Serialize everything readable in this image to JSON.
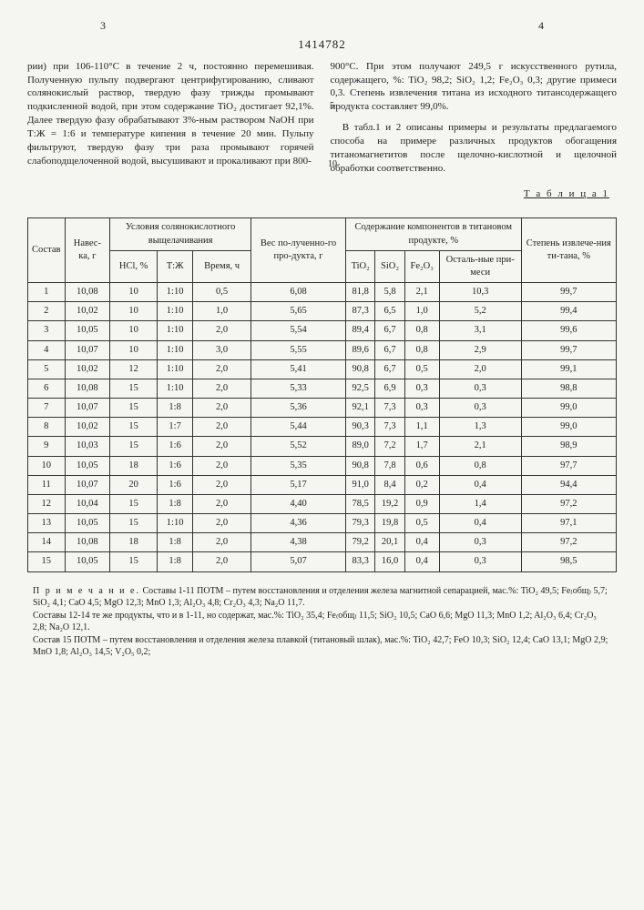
{
  "pageLeft": "3",
  "pageRight": "4",
  "docNumber": "1414782",
  "lineMarker5": "5",
  "lineMarker10": "10",
  "colLeft": "рии) при 106-110°С в течение 2 ч, постоянно перемешивая. Полученную пульпу подвергают центрифугированию, сливают солянокислый раствор, твердую фазу трижды промывают подкисленной водой, при этом содержание TiO₂ достигает 92,1%. Далее твердую фазу обрабатывают 3%-ным раствором NaOH при Т:Ж = 1:6 и температуре кипения в течение 20 мин. Пульпу фильтруют, твердую фазу три раза промывают горячей слабоподщелоченной водой, высушивают и прокаливают при 800-",
  "colRightP1": "900°С. При этом получают 249,5 г искусственного рутила, содержащего, %: TiO₂ 98,2; SiO₂ 1,2; Fe₂O₃ 0,3; другие примеси 0,3. Степень извлечения титана из исходного титансодержащего продукта составляет 99,0%.",
  "colRightP2": "В табл.1 и 2 описаны примеры и результаты предлагаемого способа на примере различных продуктов обогащения титаномагнетитов после щелочно-кислотной и щелочной обработки соответственно.",
  "tableTitle": "Т а б л и ц а  1",
  "headers": {
    "sostav": "Состав",
    "naveska": "Навес-ка, г",
    "usloviya": "Условия солянокислотного выщелачивания",
    "hcl": "HCl, %",
    "tzh": "Т:Ж",
    "vremya": "Время, ч",
    "ves": "Вес по-лученно-го про-дукта, г",
    "soderzh": "Содержание компонентов в титановом продукте, %",
    "tio2": "TiO₂",
    "sio2": "SiO₂",
    "fe2o3": "Fe₂O₃",
    "ostal": "Осталь-ные при-меси",
    "stepen": "Степень извлече-ния ти-тана, %"
  },
  "rows": [
    [
      "1",
      "10,08",
      "10",
      "1:10",
      "0,5",
      "6,08",
      "81,8",
      "5,8",
      "2,1",
      "10,3",
      "99,7"
    ],
    [
      "2",
      "10,02",
      "10",
      "1:10",
      "1,0",
      "5,65",
      "87,3",
      "6,5",
      "1,0",
      "5,2",
      "99,4"
    ],
    [
      "3",
      "10,05",
      "10",
      "1:10",
      "2,0",
      "5,54",
      "89,4",
      "6,7",
      "0,8",
      "3,1",
      "99,6"
    ],
    [
      "4",
      "10,07",
      "10",
      "1:10",
      "3,0",
      "5,55",
      "89,6",
      "6,7",
      "0,8",
      "2,9",
      "99,7"
    ],
    [
      "5",
      "10,02",
      "12",
      "1:10",
      "2,0",
      "5,41",
      "90,8",
      "6,7",
      "0,5",
      "2,0",
      "99,1"
    ],
    [
      "6",
      "10,08",
      "15",
      "1:10",
      "2,0",
      "5,33",
      "92,5",
      "6,9",
      "0,3",
      "0,3",
      "98,8"
    ],
    [
      "7",
      "10,07",
      "15",
      "1:8",
      "2,0",
      "5,36",
      "92,1",
      "7,3",
      "0,3",
      "0,3",
      "99,0"
    ],
    [
      "8",
      "10,02",
      "15",
      "1:7",
      "2,0",
      "5,44",
      "90,3",
      "7,3",
      "1,1",
      "1,3",
      "99,0"
    ],
    [
      "9",
      "10,03",
      "15",
      "1:6",
      "2,0",
      "5,52",
      "89,0",
      "7,2",
      "1,7",
      "2,1",
      "98,9"
    ],
    [
      "10",
      "10,05",
      "18",
      "1:6",
      "2,0",
      "5,35",
      "90,8",
      "7,8",
      "0,6",
      "0,8",
      "97,7"
    ],
    [
      "11",
      "10,07",
      "20",
      "1:6",
      "2,0",
      "5,17",
      "91,0",
      "8,4",
      "0,2",
      "0,4",
      "94,4"
    ],
    [
      "12",
      "10,04",
      "15",
      "1:8",
      "2,0",
      "4,40",
      "78,5",
      "19,2",
      "0,9",
      "1,4",
      "97,2"
    ],
    [
      "13",
      "10,05",
      "15",
      "1:10",
      "2,0",
      "4,36",
      "79,3",
      "19,8",
      "0,5",
      "0,4",
      "97,1"
    ],
    [
      "14",
      "10,08",
      "18",
      "1:8",
      "2,0",
      "4,38",
      "79,2",
      "20,1",
      "0,4",
      "0,3",
      "97,2"
    ],
    [
      "15",
      "10,05",
      "15",
      "1:8",
      "2,0",
      "5,07",
      "83,3",
      "16,0",
      "0,4",
      "0,3",
      "98,5"
    ]
  ],
  "notesLabel": "П р и м е ч а н и е.",
  "notes1": "Составы 1-11 ПОТМ – путем восстановления и отделения железа магнитной сепарацией, мас.%: TiO₂ 49,5; Fe₍общ₎ 5,7; SiO₂ 4,1; CaO 4,5; MgO 12,3; MnO 1,3; Al₂O₃ 4,8; Cr₂O₃ 4,3; Na₂O 11,7.",
  "notes2": "Составы 12-14 те же продукты, что и в 1-11, но содержат, мас.%: TiO₂ 35,4; Fe₍общ₎ 11,5; SiO₂ 10,5; CaO 6,6; MgO 11,3; MnO 1,2; Al₂O₃ 6,4; Cr₂O₃ 2,8; Na₂O 12,1.",
  "notes3": "Состав 15 ПОТМ – путем восстановления и отделения железа плавкой (титановый шлак), мас.%: TiO₂ 42,7; FeO 10,3; SiO₂ 12,4; CaO 13,1; MgO 2,9; MnO 1,8; Al₂O₃ 14,5; V₂O₅ 0,2;"
}
